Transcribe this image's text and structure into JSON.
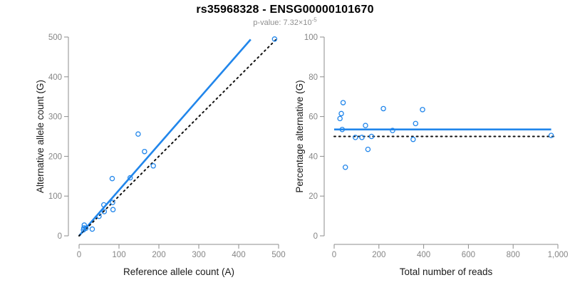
{
  "header": {
    "title": "rs35968328 - ENSG00000101670",
    "subtitle_prefix": "p-value: 7.32×10",
    "subtitle_exponent": "-5"
  },
  "colors": {
    "accent_blue": "#2186EB",
    "identity_black": "#111111",
    "axis_gray": "#8c8c8c",
    "tick_label_gray": "#858585",
    "axis_title_color": "#1a1a1a",
    "subtitle_gray": "#8f8f8f"
  },
  "chart_data": [
    {
      "id": "allele-count-scatter",
      "type": "scatter",
      "xlabel": "Reference allele count (A)",
      "ylabel": "Alternative allele count (G)",
      "xlim": [
        0,
        500
      ],
      "ylim": [
        0,
        500
      ],
      "xticks": [
        0,
        100,
        200,
        300,
        400,
        500
      ],
      "xtick_labels": [
        "0",
        "100",
        "200",
        "300",
        "400",
        "500"
      ],
      "yticks": [
        0,
        100,
        200,
        300,
        400,
        500
      ],
      "ytick_labels": [
        "0",
        "100",
        "200",
        "300",
        "400",
        "500"
      ],
      "grid": false,
      "legend": "none",
      "points": [
        [
          11,
          15
        ],
        [
          12,
          20
        ],
        [
          13,
          27
        ],
        [
          17,
          19
        ],
        [
          33,
          17
        ],
        [
          50,
          49
        ],
        [
          63,
          61
        ],
        [
          62,
          78
        ],
        [
          84,
          84
        ],
        [
          85,
          66
        ],
        [
          83,
          144
        ],
        [
          128,
          146
        ],
        [
          148,
          256
        ],
        [
          164,
          212
        ],
        [
          186,
          176
        ],
        [
          490,
          495
        ]
      ],
      "lines": [
        {
          "name": "fitted-ratio-line",
          "style": "solid",
          "color_key": "accent_blue",
          "x1": 0,
          "y1": 0,
          "x2": 430,
          "y2": 494
        },
        {
          "name": "identity-line",
          "style": "dotted",
          "color_key": "identity_black",
          "x1": 0,
          "y1": 0,
          "x2": 495,
          "y2": 495
        }
      ]
    },
    {
      "id": "percentage-vs-reads-scatter",
      "type": "scatter",
      "xlabel": "Total number of reads",
      "ylabel": "Percentage alternative (G)",
      "xlim": [
        0,
        1000
      ],
      "ylim": [
        0,
        100
      ],
      "xticks": [
        0,
        200,
        400,
        600,
        800,
        1000
      ],
      "xtick_labels": [
        "0",
        "200",
        "400",
        "600",
        "800",
        "1,000"
      ],
      "yticks": [
        0,
        20,
        40,
        60,
        80,
        100
      ],
      "ytick_labels": [
        "0",
        "20",
        "40",
        "60",
        "80",
        "100"
      ],
      "grid": false,
      "legend": "none",
      "points": [
        [
          26,
          59
        ],
        [
          32,
          61.5
        ],
        [
          36,
          53.5
        ],
        [
          40,
          67
        ],
        [
          50,
          34.5
        ],
        [
          95,
          49.5
        ],
        [
          124,
          49.5
        ],
        [
          140,
          55.5
        ],
        [
          151,
          43.5
        ],
        [
          167,
          50
        ],
        [
          220,
          64
        ],
        [
          261,
          53
        ],
        [
          353,
          48.5
        ],
        [
          364,
          56.5
        ],
        [
          395,
          63.5
        ],
        [
          970,
          50.5
        ]
      ],
      "lines": [
        {
          "name": "mean-percentage-line",
          "style": "solid",
          "color_key": "accent_blue",
          "x1": 0,
          "y1": 53.5,
          "x2": 970,
          "y2": 53.5
        },
        {
          "name": "fifty-percent-line",
          "style": "dotted",
          "color_key": "identity_black",
          "x1": 0,
          "y1": 50,
          "x2": 990,
          "y2": 50
        }
      ]
    }
  ]
}
